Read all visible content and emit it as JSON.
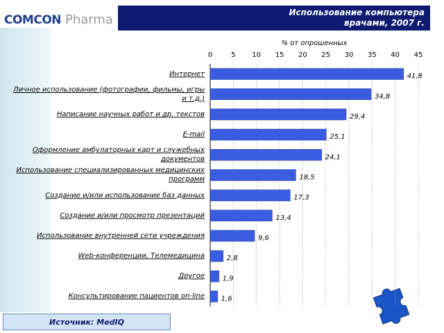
{
  "logo": {
    "brand": "COMCON",
    "product": "Pharma"
  },
  "chart_data": {
    "type": "bar",
    "orientation": "horizontal",
    "title": "Использование компьютера врачами, 2007 г.",
    "axis_label": "% от опрошенных",
    "source": "Источник: MedIQ",
    "categories": [
      "Интернет",
      "Личное использование (фотографии, фильмы, игры и т.д.)",
      "Написание научных работ и др. текстов",
      "E-mail",
      "Оформление амбулаторных карт и служебных документов",
      "Использование специализированных медицинских программ",
      "Создание и/или использование баз данных",
      "Создание и/или просмотр презентаций",
      "Использование внутренней сети учреждения",
      "Web-конференции, Телемедицина",
      "Другое",
      "Консультирование пациентов on-line"
    ],
    "values": [
      41.8,
      34.8,
      29.4,
      25.1,
      24.1,
      18.5,
      17.3,
      13.4,
      9.6,
      2.8,
      1.9,
      1.6
    ],
    "value_labels": [
      "41,8",
      "34,8",
      "29,4",
      "25,1",
      "24,1",
      "18,5",
      "17,3",
      "13,4",
      "9,6",
      "2,8",
      "1,9",
      "1,6"
    ],
    "color": "#3a5ce0",
    "xlim": [
      0,
      45
    ],
    "xticks": [
      0,
      5,
      10,
      15,
      20,
      25,
      30,
      35,
      40,
      45
    ],
    "grid": true
  }
}
